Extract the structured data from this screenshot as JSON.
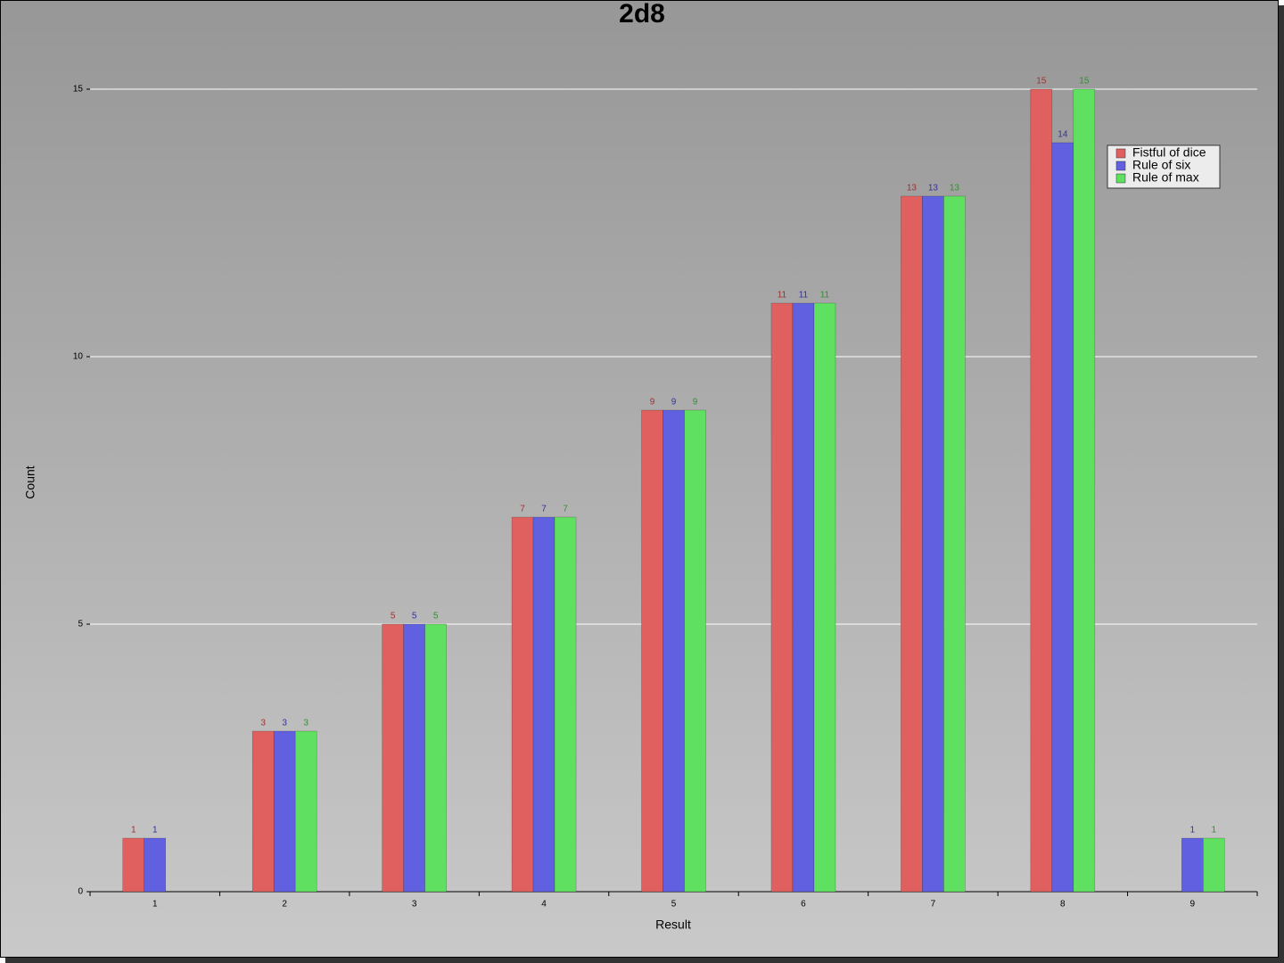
{
  "chart_data": {
    "type": "bar",
    "title": "2d8",
    "x_label": "Result",
    "y_label": "Count",
    "categories": [
      "1",
      "2",
      "3",
      "4",
      "5",
      "6",
      "7",
      "8",
      "9"
    ],
    "series": [
      {
        "name": "Fistful of dice",
        "color": "#e06060",
        "label_color": "#a03030",
        "values": [
          1,
          3,
          5,
          7,
          9,
          11,
          13,
          15,
          null
        ]
      },
      {
        "name": "Rule of six",
        "color": "#6060e0",
        "label_color": "#3030a0",
        "values": [
          1,
          3,
          5,
          7,
          9,
          11,
          13,
          14,
          1
        ]
      },
      {
        "name": "Rule of max",
        "color": "#60e060",
        "label_color": "#309030",
        "values": [
          null,
          3,
          5,
          7,
          9,
          11,
          13,
          15,
          1
        ]
      }
    ],
    "ylim": [
      0,
      15
    ],
    "yticks": [
      0,
      5,
      10,
      15
    ],
    "grid": true,
    "legend": "upper right"
  }
}
